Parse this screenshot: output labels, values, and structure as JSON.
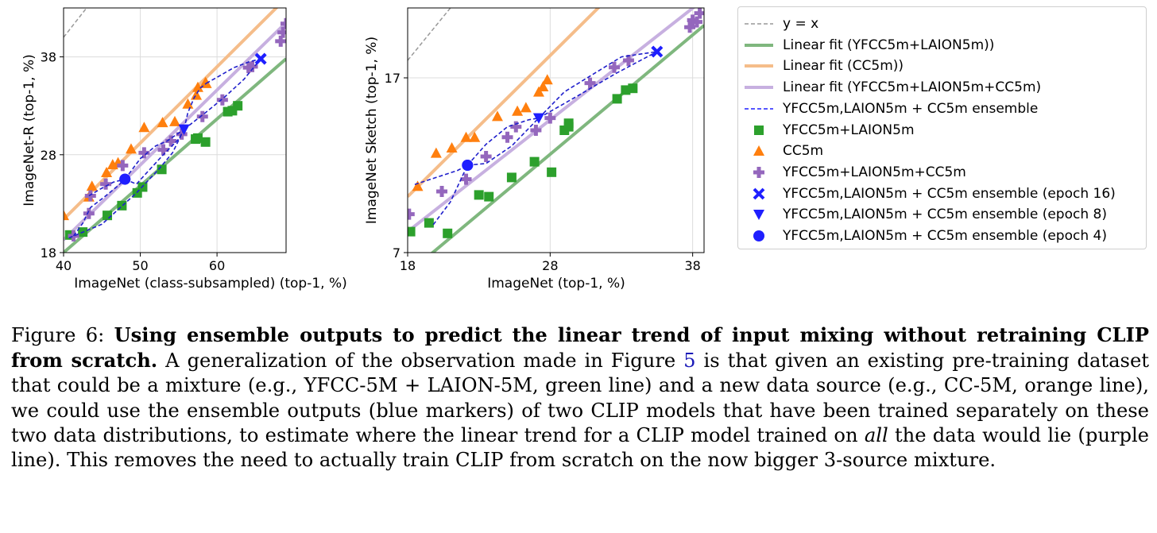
{
  "chart_data": [
    {
      "type": "scatter",
      "xlabel": "ImageNet (class-subsampled) (top-1, %)",
      "ylabel": "ImageNet-R (top-1, %)",
      "xlim": [
        40,
        69
      ],
      "ylim": [
        18,
        43
      ],
      "xticks": [
        40,
        50,
        60
      ],
      "yticks": [
        18,
        28,
        38
      ],
      "grid": true,
      "series": [
        {
          "name": "YFCC5m+LAION5m",
          "marker": "square",
          "color": "#2ca02c",
          "x": [
            40.8,
            42.5,
            45.7,
            47.6,
            49.6,
            50.3,
            52.8,
            57.2,
            57.5,
            58.5,
            61.4,
            62.0,
            62.7
          ],
          "y": [
            19.8,
            20.1,
            21.8,
            22.8,
            24.1,
            24.7,
            26.5,
            29.6,
            29.7,
            29.3,
            32.4,
            32.5,
            33.0
          ]
        },
        {
          "name": "CC5m",
          "marker": "triangle",
          "color": "#ff7f0e",
          "x": [
            40.0,
            43.3,
            43.7,
            45.6,
            46.4,
            47.1,
            48.8,
            50.5,
            52.9,
            54.5,
            56.2,
            57.3,
            57.5,
            58.5,
            58.6
          ],
          "y": [
            21.8,
            23.7,
            24.8,
            26.2,
            27.0,
            27.2,
            28.6,
            30.8,
            31.3,
            31.4,
            33.2,
            34.1,
            34.9,
            35.4,
            35.3
          ]
        },
        {
          "name": "YFCC5m+LAION5m+CC5m",
          "marker": "plus",
          "color": "#9467bd",
          "x": [
            41.3,
            43.3,
            43.5,
            45.5,
            47.7,
            50.5,
            53.0,
            54.0,
            55.4,
            58.1,
            60.7,
            64.1,
            64.6,
            68.3,
            68.6,
            69.0
          ],
          "y": [
            19.7,
            22.0,
            23.8,
            25.0,
            26.9,
            28.2,
            28.5,
            29.4,
            30.1,
            31.9,
            33.6,
            36.9,
            37.0,
            39.6,
            40.5,
            41.4
          ]
        },
        {
          "name": "YFCC5m,LAION5m + CC5m ensemble (epoch 16)",
          "marker": "x",
          "color": "#1f1fff",
          "x": [
            65.7
          ],
          "y": [
            37.8
          ]
        },
        {
          "name": "YFCC5m,LAION5m + CC5m ensemble (epoch 8)",
          "marker": "triangle-down",
          "color": "#1f1fff",
          "x": [
            55.7
          ],
          "y": [
            30.6
          ]
        },
        {
          "name": "YFCC5m,LAION5m + CC5m ensemble (epoch 4)",
          "marker": "circle",
          "color": "#1f1fff",
          "x": [
            48.0
          ],
          "y": [
            25.5
          ]
        }
      ],
      "fits": [
        {
          "name": "y = x",
          "style": "dashed",
          "color": "#999999",
          "x": [
            40,
            69
          ],
          "y": [
            40,
            69
          ]
        },
        {
          "name": "Linear fit (YFCC5m+LAION5m))",
          "color": "#7fb77e",
          "x": [
            40,
            69
          ],
          "y": [
            18.0,
            37.8
          ]
        },
        {
          "name": "Linear fit (CC5m))",
          "color": "#f5bd8a",
          "x": [
            40,
            69
          ],
          "y": [
            21.4,
            44.0
          ]
        },
        {
          "name": "Linear fit (YFCC5m+LAION5m+CC5m)",
          "color": "#c7b0e0",
          "x": [
            40,
            69
          ],
          "y": [
            19.3,
            41.5
          ]
        }
      ],
      "ensemble_curves": [
        {
          "x": [
            41.3,
            42.5,
            43.5,
            45.5,
            47.2,
            48.0
          ],
          "y": [
            19.7,
            21.0,
            22.6,
            23.8,
            24.9,
            25.5
          ]
        },
        {
          "x": [
            48.0,
            49.5,
            51.0,
            53.0,
            55.0,
            55.7
          ],
          "y": [
            25.5,
            25.0,
            26.3,
            28.0,
            29.6,
            30.6
          ]
        },
        {
          "x": [
            55.7,
            56.2,
            57.0,
            57.8,
            58.6
          ],
          "y": [
            30.6,
            32.3,
            33.8,
            34.8,
            35.3
          ]
        },
        {
          "x": [
            58.6,
            60.2,
            62.2,
            64.2,
            65.7
          ],
          "y": [
            35.3,
            36.0,
            36.9,
            37.5,
            37.8
          ]
        },
        {
          "x": [
            40.7,
            45.0,
            49.5,
            52.5,
            54.2,
            55.7
          ],
          "y": [
            19.5,
            20.9,
            24.1,
            26.6,
            28.2,
            30.6
          ]
        },
        {
          "x": [
            55.7,
            58.5,
            61.0,
            63.5,
            65.7
          ],
          "y": [
            30.6,
            32.3,
            33.9,
            35.7,
            37.8
          ]
        },
        {
          "x": [
            43.3,
            44.8,
            46.5,
            48.0
          ],
          "y": [
            23.8,
            24.5,
            25.2,
            25.5
          ]
        },
        {
          "x": [
            48.0,
            50.0,
            52.0,
            53.5,
            55.7
          ],
          "y": [
            25.5,
            27.6,
            28.9,
            29.4,
            30.6
          ]
        }
      ]
    },
    {
      "type": "scatter",
      "xlabel": "ImageNet (top-1, %)",
      "ylabel": "ImageNet Sketch (top-1, %)",
      "xlim": [
        18,
        38.8
      ],
      "ylim": [
        7,
        21
      ],
      "xticks": [
        18,
        28,
        38
      ],
      "yticks": [
        7,
        17
      ],
      "grid": true,
      "series": [
        {
          "name": "YFCC5m+LAION5m",
          "marker": "square",
          "color": "#2ca02c",
          "x": [
            18.2,
            19.5,
            20.8,
            23.0,
            23.7,
            25.3,
            26.9,
            28.1,
            29.0,
            29.3,
            29.3,
            32.7,
            33.3,
            33.8
          ],
          "y": [
            8.2,
            8.7,
            8.1,
            10.3,
            10.2,
            11.3,
            12.2,
            11.6,
            14.0,
            14.2,
            14.4,
            15.8,
            16.3,
            16.4
          ]
        },
        {
          "name": "CC5m",
          "marker": "triangle",
          "color": "#ff7f0e",
          "x": [
            18.7,
            20.0,
            21.1,
            22.1,
            22.7,
            24.3,
            25.7,
            26.3,
            27.2,
            27.5,
            27.8
          ],
          "y": [
            10.8,
            12.7,
            13.0,
            13.6,
            13.6,
            14.8,
            15.1,
            15.3,
            16.2,
            16.5,
            16.9
          ]
        },
        {
          "name": "YFCC5m+LAION5m+CC5m",
          "marker": "plus",
          "color": "#9467bd",
          "x": [
            18.1,
            20.4,
            22.1,
            23.5,
            25.0,
            25.6,
            27.0,
            28.0,
            30.8,
            32.5,
            33.5,
            37.8,
            38.0,
            38.3,
            38.5
          ],
          "y": [
            9.2,
            10.5,
            11.2,
            12.5,
            13.6,
            14.2,
            14.0,
            14.7,
            16.7,
            17.6,
            18.0,
            19.9,
            20.3,
            20.2,
            20.7
          ]
        },
        {
          "name": "YFCC5m,LAION5m + CC5m ensemble (epoch 16)",
          "marker": "x",
          "color": "#1f1fff",
          "x": [
            35.5
          ],
          "y": [
            18.5
          ]
        },
        {
          "name": "YFCC5m,LAION5m + CC5m ensemble (epoch 8)",
          "marker": "triangle-down",
          "color": "#1f1fff",
          "x": [
            27.2
          ],
          "y": [
            14.7
          ]
        },
        {
          "name": "YFCC5m,LAION5m + CC5m ensemble (epoch 4)",
          "marker": "circle",
          "color": "#1f1fff",
          "x": [
            22.2
          ],
          "y": [
            12.0
          ]
        }
      ],
      "fits": [
        {
          "name": "y = x",
          "style": "dashed",
          "color": "#999999",
          "x": [
            18,
            38.8
          ],
          "y": [
            18,
            38.8
          ]
        },
        {
          "name": "Linear fit (YFCC5m+LAION5m))",
          "color": "#7fb77e",
          "x": [
            18,
            38.8
          ],
          "y": [
            5.8,
            20.0
          ]
        },
        {
          "name": "Linear fit (CC5m))",
          "color": "#f5bd8a",
          "x": [
            18,
            38.8
          ],
          "y": [
            10.2,
            27.0
          ]
        },
        {
          "name": "Linear fit (YFCC5m+LAION5m+CC5m)",
          "color": "#c7b0e0",
          "x": [
            18,
            38.8
          ],
          "y": [
            8.2,
            21.5
          ]
        }
      ],
      "ensemble_curves": [
        {
          "x": [
            18.5,
            20.0,
            21.5,
            22.2
          ],
          "y": [
            10.9,
            11.3,
            11.7,
            12.0
          ]
        },
        {
          "x": [
            22.2,
            23.5,
            25.0,
            26.5,
            27.2
          ],
          "y": [
            12.0,
            13.2,
            14.2,
            14.6,
            14.7
          ]
        },
        {
          "x": [
            27.2,
            29.0,
            31.0,
            33.0,
            35.5
          ],
          "y": [
            14.7,
            16.2,
            17.2,
            18.2,
            18.5
          ]
        },
        {
          "x": [
            19.8,
            21.0,
            22.2
          ],
          "y": [
            8.6,
            9.9,
            12.0
          ]
        },
        {
          "x": [
            22.2,
            23.5,
            25.3,
            27.2
          ],
          "y": [
            12.0,
            12.1,
            13.1,
            14.7
          ]
        },
        {
          "x": [
            27.2,
            30.0,
            32.5,
            35.5
          ],
          "y": [
            14.7,
            16.0,
            17.2,
            18.5
          ]
        }
      ]
    }
  ],
  "legend": {
    "items": [
      {
        "label": "y = x",
        "symbol": "dashed-line",
        "color": "#999999"
      },
      {
        "label": "Linear fit (YFCC5m+LAION5m))",
        "symbol": "line",
        "color": "#7fb77e"
      },
      {
        "label": "Linear fit (CC5m))",
        "symbol": "line",
        "color": "#f5bd8a"
      },
      {
        "label": "Linear fit (YFCC5m+LAION5m+CC5m)",
        "symbol": "line",
        "color": "#c7b0e0"
      },
      {
        "label": "YFCC5m,LAION5m + CC5m ensemble",
        "symbol": "dashed-line",
        "color": "#1f1fff"
      },
      {
        "label": "YFCC5m+LAION5m",
        "symbol": "square",
        "color": "#2ca02c"
      },
      {
        "label": "CC5m",
        "symbol": "triangle",
        "color": "#ff7f0e"
      },
      {
        "label": "YFCC5m+LAION5m+CC5m",
        "symbol": "plus",
        "color": "#9467bd"
      },
      {
        "label": "YFCC5m,LAION5m + CC5m ensemble (epoch 16)",
        "symbol": "x",
        "color": "#1f1fff"
      },
      {
        "label": "YFCC5m,LAION5m + CC5m ensemble (epoch 8)",
        "symbol": "triangle-down",
        "color": "#1f1fff"
      },
      {
        "label": "YFCC5m,LAION5m + CC5m ensemble (epoch 4)",
        "symbol": "circle",
        "color": "#1f1fff"
      }
    ]
  },
  "caption": {
    "prefix": "Figure 6: ",
    "bold": "Using ensemble outputs to predict the linear trend of input mixing without retraining CLIP from scratch.",
    "text1": " A generalization of the observation made in Figure ",
    "ref": "5",
    "text2": " is that given an existing pre-training dataset that could be a mixture (e.g., YFCC-5M + LAION-5M, green line) and a new data source (e.g., CC-5M, orange line), we could use the ensemble outputs (blue markers) of two CLIP models that have been trained separately on these two data distributions, to estimate where the linear trend for a CLIP model trained on ",
    "em": "all",
    "text3": " the data would lie (purple line). This removes the need to actually train CLIP from scratch on the now bigger 3-source mixture."
  }
}
